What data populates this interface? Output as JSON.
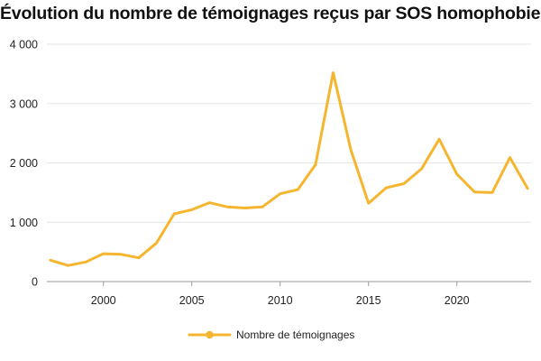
{
  "chart_data": {
    "type": "line",
    "title": "Évolution du nombre de témoignages reçus par SOS homophobie",
    "xlabel": "",
    "ylabel": "",
    "x": [
      1997,
      1998,
      1999,
      2000,
      2001,
      2002,
      2003,
      2004,
      2005,
      2006,
      2007,
      2008,
      2009,
      2010,
      2011,
      2012,
      2013,
      2014,
      2015,
      2016,
      2017,
      2018,
      2019,
      2020,
      2021,
      2022,
      2023,
      2024
    ],
    "series": [
      {
        "name": "Nombre de témoignages",
        "color": "#F5B52E",
        "values": [
          360,
          270,
          330,
          470,
          460,
          400,
          650,
          1140,
          1210,
          1330,
          1260,
          1240,
          1260,
          1480,
          1550,
          1970,
          3520,
          2220,
          1320,
          1580,
          1650,
          1900,
          2400,
          1810,
          1510,
          1500,
          2090,
          1570
        ]
      }
    ],
    "xlim": [
      1996.8,
      2024.2
    ],
    "ylim": [
      0,
      4000
    ],
    "x_ticks": [
      "2000",
      "2005",
      "2010",
      "2015",
      "2020"
    ],
    "y_ticks": [
      "0",
      "1 000",
      "2 000",
      "3 000",
      "4 000"
    ],
    "grid": "horizontal",
    "legend_position": "bottom"
  }
}
